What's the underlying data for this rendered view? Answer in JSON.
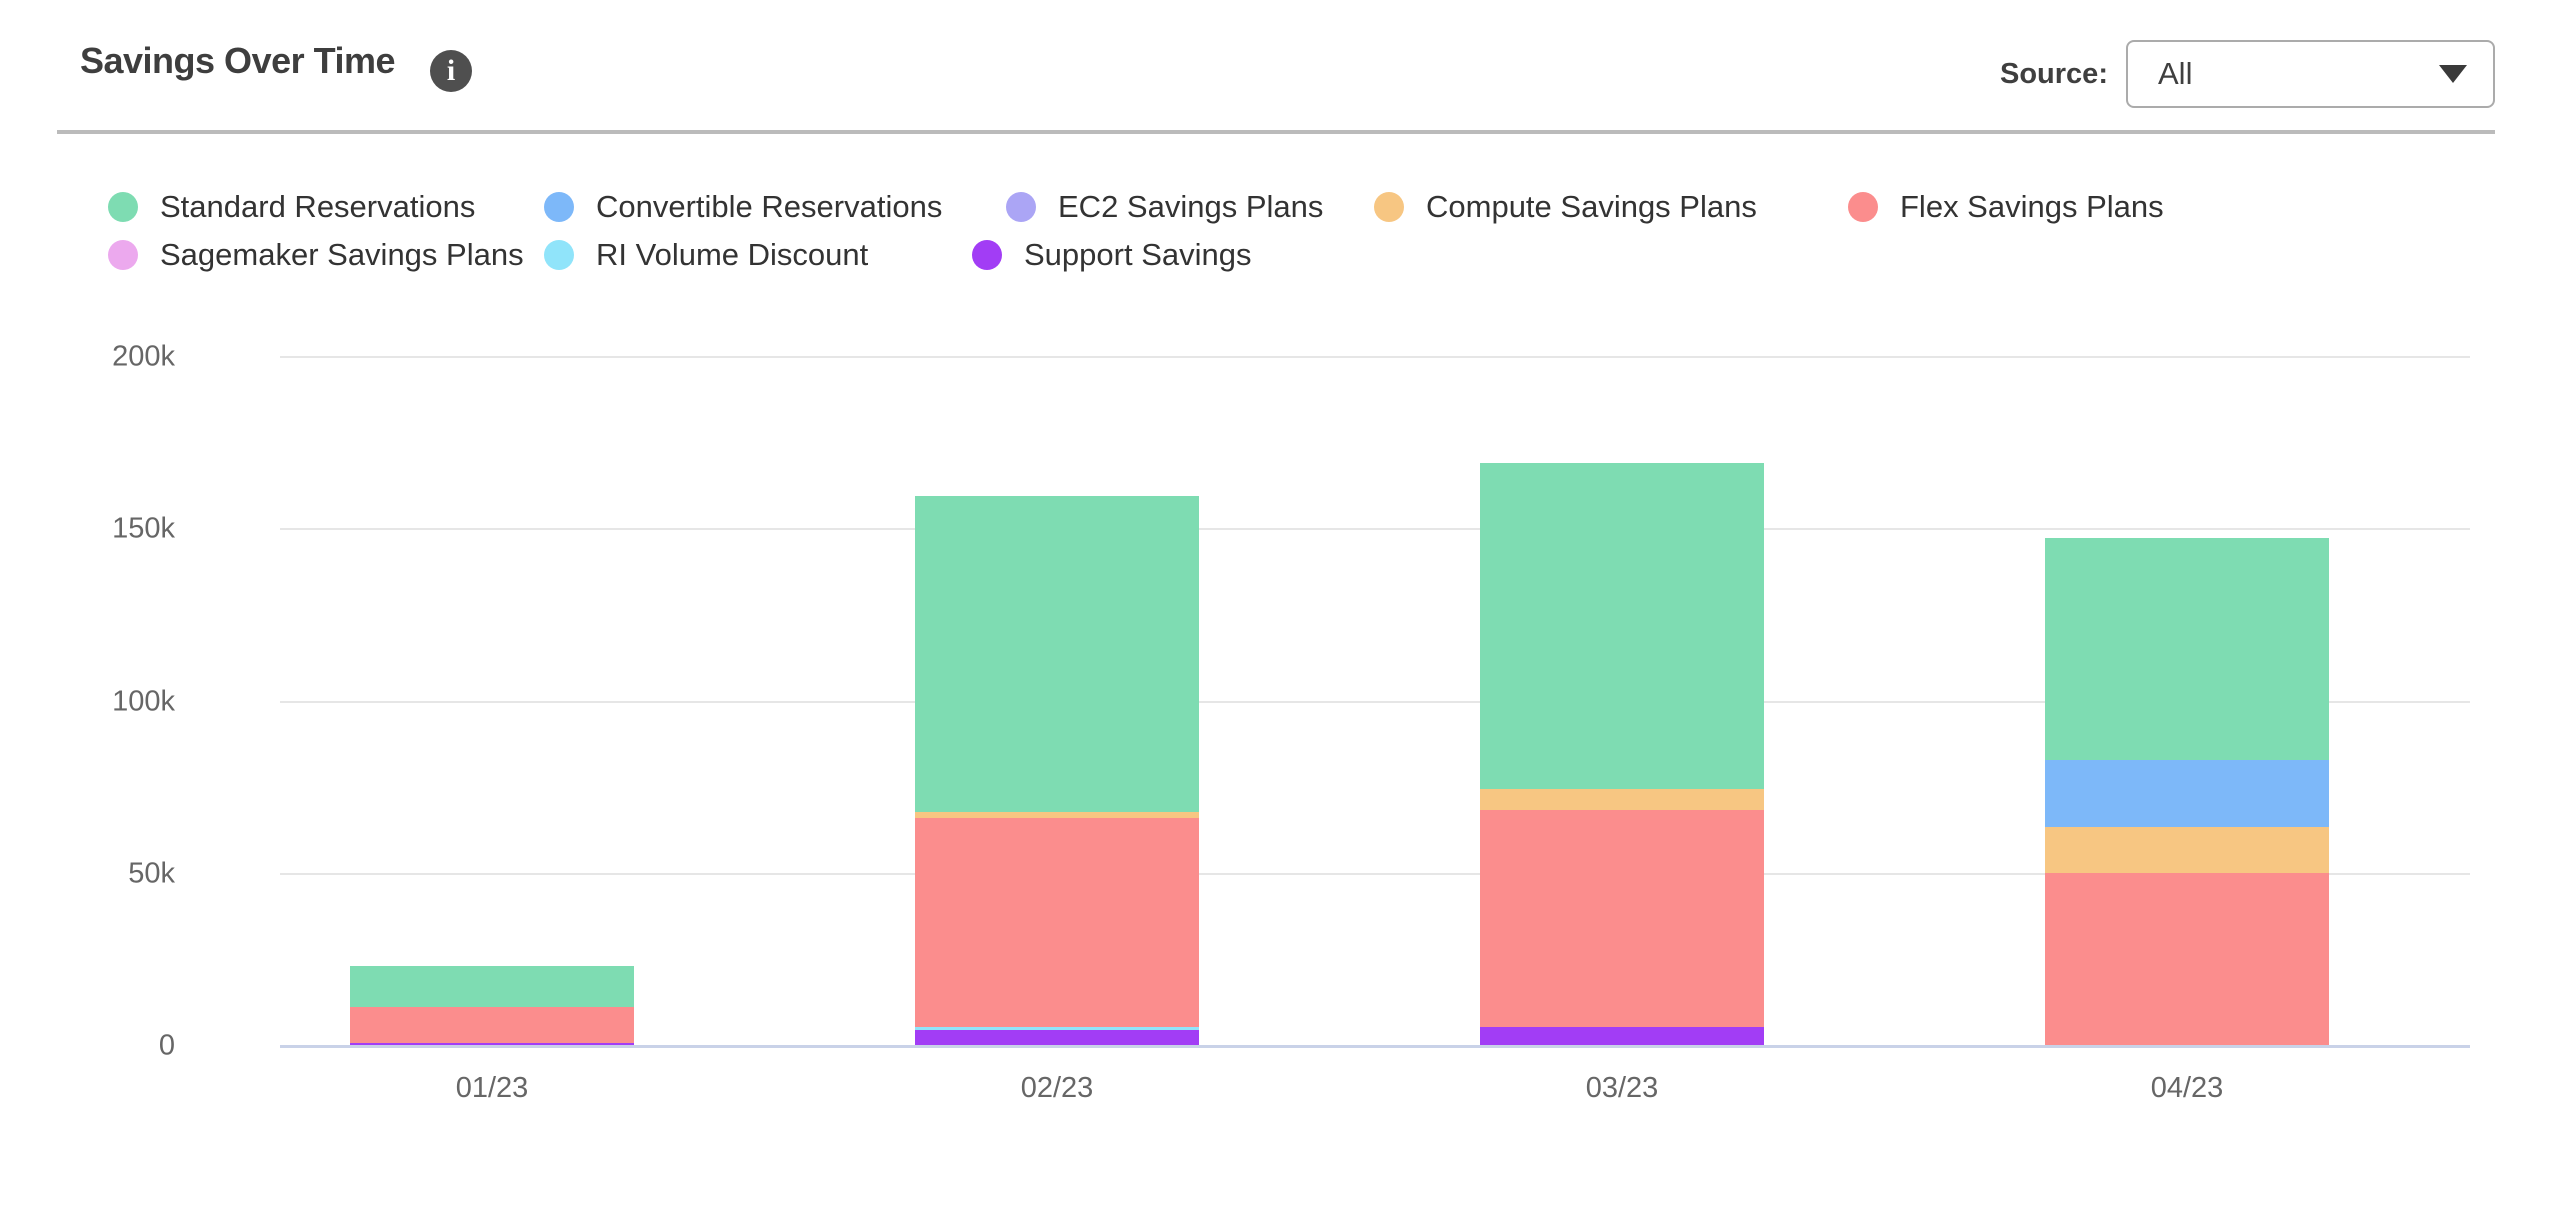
{
  "header": {
    "title": "Savings Over Time",
    "info_icon_glyph": "i",
    "source_label": "Source:",
    "source_value": "All"
  },
  "legend": {
    "items": [
      {
        "label": "Standard Reservations",
        "color": "#7edcb2"
      },
      {
        "label": "Convertible Reservations",
        "color": "#7db8f9"
      },
      {
        "label": "EC2 Savings Plans",
        "color": "#aba5f5"
      },
      {
        "label": "Compute Savings Plans",
        "color": "#f7c682"
      },
      {
        "label": "Flex Savings Plans",
        "color": "#fb8d8d"
      },
      {
        "label": "Sagemaker Savings Plans",
        "color": "#eca9ee"
      },
      {
        "label": "RI Volume Discount",
        "color": "#90e4fa"
      },
      {
        "label": "Support Savings",
        "color": "#a23df5"
      }
    ]
  },
  "chart_data": {
    "type": "bar",
    "stacked": true,
    "stack_order": "reverse-legend (Support Savings at bottom, Standard Reservations on top)",
    "title": "Savings Over Time",
    "xlabel": "",
    "ylabel": "",
    "ylim": [
      0,
      200000
    ],
    "grid": true,
    "legend_position": "top",
    "categories": [
      "01/23",
      "02/23",
      "03/23",
      "04/23"
    ],
    "ytick_labels": [
      "200k",
      "150k",
      "100k",
      "50k",
      "0"
    ],
    "ytick_values": [
      200000,
      150000,
      100000,
      50000,
      0
    ],
    "series": [
      {
        "name": "Standard Reservations",
        "color": "#7edcb2",
        "values": [
          12100,
          91500,
          94300,
          64400
        ]
      },
      {
        "name": "Convertible Reservations",
        "color": "#7db8f9",
        "values": [
          0,
          0,
          0,
          19500
        ]
      },
      {
        "name": "EC2 Savings Plans",
        "color": "#aba5f5",
        "values": [
          0,
          0,
          0,
          0
        ]
      },
      {
        "name": "Compute Savings Plans",
        "color": "#f7c682",
        "values": [
          0,
          1800,
          6300,
          13400
        ]
      },
      {
        "name": "Flex Savings Plans",
        "color": "#fb8d8d",
        "values": [
          10200,
          60400,
          62800,
          50100
        ]
      },
      {
        "name": "Sagemaker Savings Plans",
        "color": "#eca9ee",
        "values": [
          0,
          0,
          0,
          0
        ]
      },
      {
        "name": "RI Volume Discount",
        "color": "#90e4fa",
        "values": [
          0,
          900,
          0,
          0
        ]
      },
      {
        "name": "Support Savings",
        "color": "#a23df5",
        "values": [
          1000,
          4700,
          5500,
          0
        ]
      }
    ],
    "totals": [
      23300,
      159300,
      168900,
      147400
    ]
  },
  "style": {
    "gridline_color": "#e6e6e6",
    "baseline_color": "#c9d2e8",
    "divider_color": "#bbbbbb",
    "tick_text_color": "#666666"
  }
}
